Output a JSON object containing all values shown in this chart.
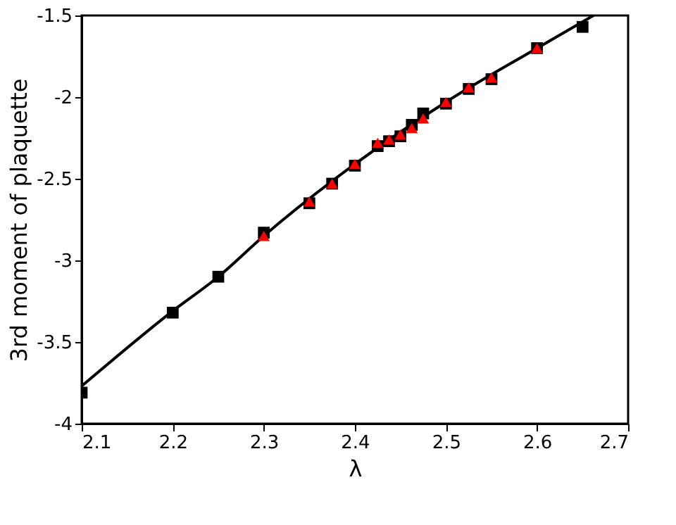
{
  "chart_data": {
    "type": "scatter",
    "xlabel": "λ",
    "ylabel": "3rd moment of plaquette",
    "xlim": [
      2.1,
      2.7
    ],
    "xticks": [
      2.1,
      2.2,
      2.3,
      2.4,
      2.5,
      2.6,
      2.7
    ],
    "ylim": [
      -4,
      -1.5
    ],
    "yticks": [
      -4,
      -3.5,
      -3,
      -2.5,
      -2,
      -1.5
    ],
    "grid": false,
    "series": [
      {
        "type": "line",
        "color": "#000000",
        "marker": "none",
        "line_style": "solid",
        "x": [
          2.1,
          2.2,
          2.25,
          2.3,
          2.4,
          2.5,
          2.6,
          2.662
        ],
        "values": [
          -3.77,
          -3.31,
          -3.1,
          -2.85,
          -2.41,
          -2.03,
          -1.7,
          -1.5
        ]
      },
      {
        "color": "#000000",
        "marker": "square",
        "x": [
          2.1,
          2.2,
          2.25,
          2.3,
          2.35,
          2.375,
          2.4,
          2.425,
          2.4375,
          2.45,
          2.4625,
          2.475,
          2.5,
          2.525,
          2.55,
          2.6,
          2.65
        ],
        "values": [
          -3.81,
          -3.32,
          -3.1,
          -2.83,
          -2.65,
          -2.53,
          -2.42,
          -2.3,
          -2.27,
          -2.24,
          -2.17,
          -2.1,
          -2.04,
          -1.95,
          -1.89,
          -1.7,
          -1.57
        ]
      },
      {
        "color": "#ff0000",
        "marker": "triangle",
        "x": [
          2.3,
          2.35,
          2.375,
          2.4,
          2.425,
          2.4375,
          2.45,
          2.4625,
          2.475,
          2.5,
          2.525,
          2.55,
          2.6
        ],
        "values": [
          -2.85,
          -2.64,
          -2.53,
          -2.41,
          -2.28,
          -2.26,
          -2.23,
          -2.19,
          -2.13,
          -2.03,
          -1.94,
          -1.88,
          -1.7
        ]
      }
    ]
  }
}
